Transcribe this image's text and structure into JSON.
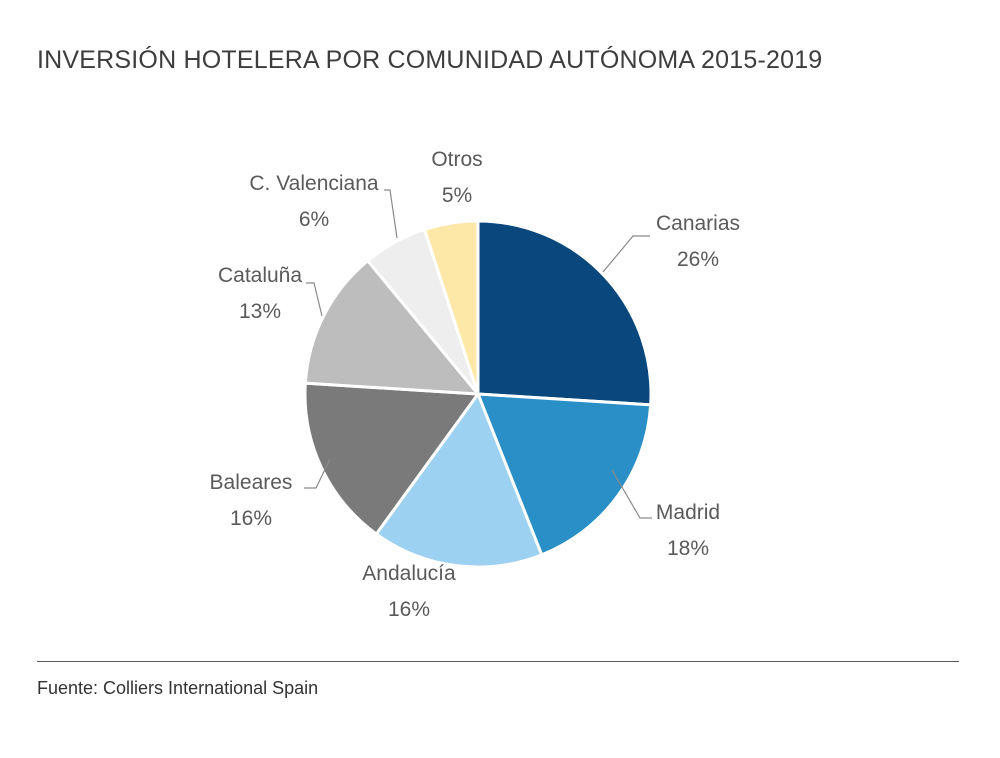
{
  "title": "INVERSIÓN HOTELERA POR COMUNIDAD AUTÓNOMA 2015-2019",
  "source": "Fuente: Colliers International Spain",
  "chart_data": {
    "type": "pie",
    "title": "INVERSIÓN HOTELERA POR COMUNIDAD AUTÓNOMA 2015-2019",
    "unit": "%",
    "legend": "none",
    "slices": [
      {
        "label": "Canarias",
        "value": 26,
        "value_label": "26%",
        "color": "#0a477d"
      },
      {
        "label": "Madrid",
        "value": 18,
        "value_label": "18%",
        "color": "#2a8fc6"
      },
      {
        "label": "Andalucía",
        "value": 16,
        "value_label": "16%",
        "color": "#9dd1f2"
      },
      {
        "label": "Baleares",
        "value": 16,
        "value_label": "16%",
        "color": "#7a7a7a"
      },
      {
        "label": "Cataluña",
        "value": 13,
        "value_label": "13%",
        "color": "#bdbdbd"
      },
      {
        "label": "C. Valenciana",
        "value": 6,
        "value_label": "6%",
        "color": "#eeeeee"
      },
      {
        "label": "Otros",
        "value": 5,
        "value_label": "5%",
        "color": "#fde8a8"
      }
    ]
  }
}
